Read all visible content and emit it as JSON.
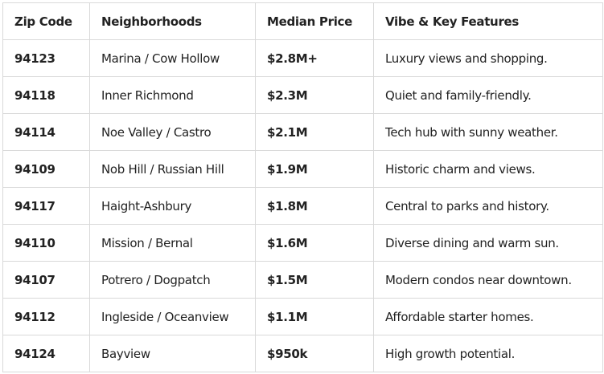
{
  "headers": [
    "Zip Code",
    "Neighborhoods",
    "Median Price",
    "Vibe & Key Features"
  ],
  "rows": [
    [
      "94123",
      "Marina / Cow Hollow",
      "$2.8M+",
      "Luxury views and shopping."
    ],
    [
      "94118",
      "Inner Richmond",
      "$2.3M",
      "Quiet and family-friendly."
    ],
    [
      "94114",
      "Noe Valley / Castro",
      "$2.1M",
      "Tech hub with sunny weather."
    ],
    [
      "94109",
      "Nob Hill / Russian Hill",
      "$1.9M",
      "Historic charm and views."
    ],
    [
      "94117",
      "Haight-Ashbury",
      "$1.8M",
      "Central to parks and history."
    ],
    [
      "94110",
      "Mission / Bernal",
      "$1.6M",
      "Diverse dining and warm sun."
    ],
    [
      "94107",
      "Potrero / Dogpatch",
      "$1.5M",
      "Modern condos near downtown."
    ],
    [
      "94112",
      "Ingleside / Oceanview",
      "$1.1M",
      "Affordable starter homes."
    ],
    [
      "94124",
      "Bayview",
      "$950k",
      "High growth potential."
    ]
  ]
}
